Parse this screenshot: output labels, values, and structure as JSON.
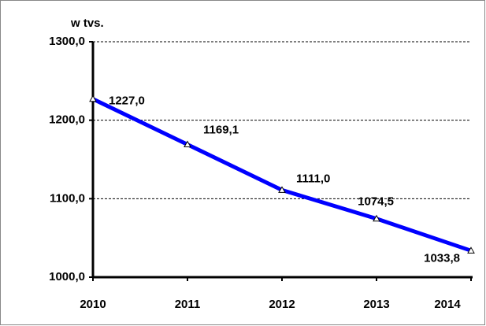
{
  "chart_data": {
    "type": "line",
    "y_label": "w tvs.",
    "categories": [
      "2010",
      "2011",
      "2012",
      "2013",
      "2014"
    ],
    "series": [
      {
        "name": "w tvs.",
        "color": "#0000ff",
        "values": [
          1227.0,
          1169.1,
          1111.0,
          1074.5,
          1033.8
        ],
        "value_labels": [
          "1227,0",
          "1169,1",
          "1111,0",
          "1074,5",
          "1033,8"
        ]
      }
    ],
    "ylim": [
      1000,
      1300
    ],
    "yticks": [
      {
        "value": 1000,
        "label": "1000,0"
      },
      {
        "value": 1100,
        "label": "1100,0"
      },
      {
        "value": 1200,
        "label": "1200,0"
      },
      {
        "value": 1300,
        "label": "1300,0"
      }
    ],
    "grid": true
  }
}
